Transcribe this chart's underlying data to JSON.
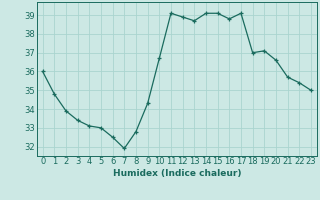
{
  "xlabel": "Humidex (Indice chaleur)",
  "x": [
    0,
    1,
    2,
    3,
    4,
    5,
    6,
    7,
    8,
    9,
    10,
    11,
    12,
    13,
    14,
    15,
    16,
    17,
    18,
    19,
    20,
    21,
    22,
    23
  ],
  "y": [
    36,
    34.8,
    33.9,
    33.4,
    33.1,
    33.0,
    32.5,
    31.9,
    32.8,
    34.3,
    36.7,
    39.1,
    38.9,
    38.7,
    39.1,
    39.1,
    38.8,
    39.1,
    37.0,
    37.1,
    36.6,
    35.7,
    35.4,
    35.0
  ],
  "ylim": [
    31.5,
    39.7
  ],
  "yticks": [
    32,
    33,
    34,
    35,
    36,
    37,
    38,
    39
  ],
  "line_color": "#1a6b5e",
  "marker": "+",
  "bg_color": "#cce8e4",
  "grid_color": "#aad4cf",
  "xlabel_fontsize": 6.5,
  "tick_fontsize": 6.0
}
